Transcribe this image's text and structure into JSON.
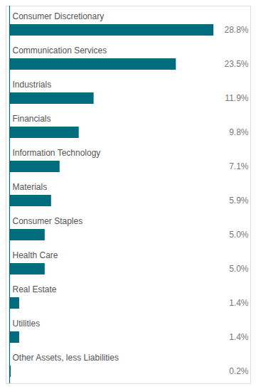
{
  "chart_data": {
    "type": "bar",
    "orientation": "horizontal",
    "categories": [
      "Consumer Discretionary",
      "Communication Services",
      "Industrials",
      "Financials",
      "Information Technology",
      "Materials",
      "Consumer Staples",
      "Health Care",
      "Real Estate",
      "Utilities",
      "Other Assets, less Liabilities"
    ],
    "values": [
      28.8,
      23.5,
      11.9,
      9.8,
      7.1,
      5.9,
      5.0,
      5.0,
      1.4,
      1.4,
      0.2
    ],
    "value_labels": [
      "28.8%",
      "23.5%",
      "11.9%",
      "9.8%",
      "7.1%",
      "5.9%",
      "5.0%",
      "5.0%",
      "1.4%",
      "1.4%",
      "0.2%"
    ],
    "data_labels": true,
    "color": "#006d7e",
    "xlim": [
      -0.5,
      34
    ],
    "tick_labels": false,
    "grid": false
  }
}
